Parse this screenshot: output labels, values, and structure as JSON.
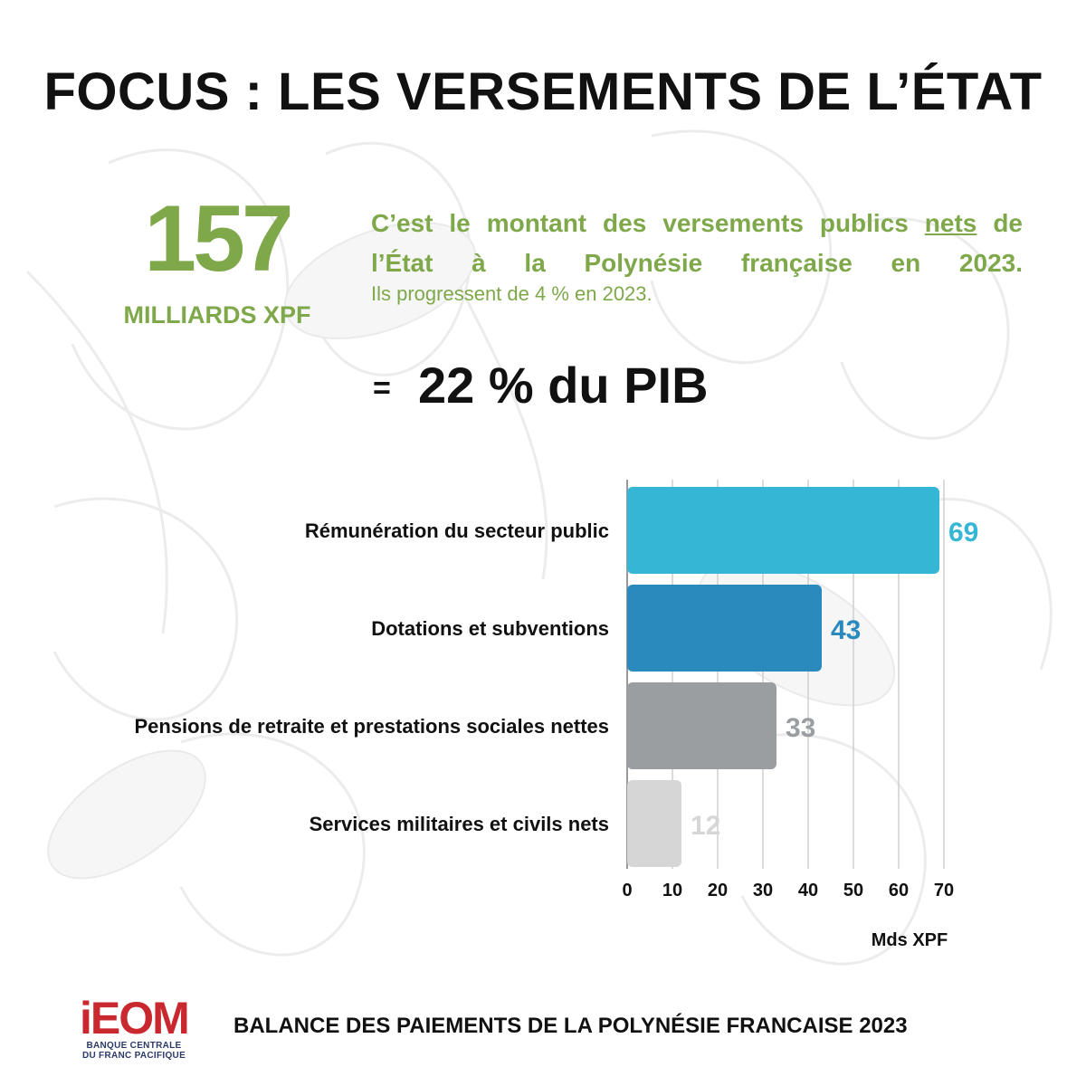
{
  "header": {
    "title": "FOCUS : LES VERSEMENTS DE L’ÉTAT"
  },
  "highlight": {
    "number": "157",
    "unit": "MILLIARDS XPF",
    "desc_part1": "C’est le montant des versements publics ",
    "desc_underlined": "nets",
    "desc_part2": " de l’État à la Polynésie française en 2023.",
    "desc_sub": "Ils progressent de 4 % en 2023.",
    "pib_equals": "=",
    "pib_text": "22 % du PIB"
  },
  "colors": {
    "green": "#7ea84a",
    "bar1": "#35b6d5",
    "bar2": "#2a89bd",
    "bar3": "#9a9ea1",
    "bar4": "#d6d6d6"
  },
  "chart_data": {
    "type": "bar",
    "orientation": "horizontal",
    "categories": [
      "Rémunération du secteur public",
      "Dotations et subventions",
      "Pensions de retraite et prestations sociales nettes",
      "Services militaires et civils nets"
    ],
    "values": [
      69,
      43,
      33,
      12
    ],
    "value_labels": [
      "69",
      "43",
      "33",
      "12"
    ],
    "bar_colors": [
      "#35b6d5",
      "#2a89bd",
      "#9a9ea1",
      "#d6d6d6"
    ],
    "label_colors": [
      "#35b6d5",
      "#2a89bd",
      "#9a9ea1",
      "#d6d6d6"
    ],
    "xticks": [
      0,
      10,
      20,
      30,
      40,
      50,
      60,
      70
    ],
    "xlim": [
      0,
      70
    ],
    "xlabel": "Mds XPF",
    "grid": true
  },
  "footer": {
    "title": "BALANCE DES PAIEMENTS DE LA  POLYNÉSIE FRANCAISE 2023",
    "logo_text": "iEOM",
    "logo_sub_1": "BANQUE CENTRALE",
    "logo_sub_2": "DU FRANC PACIFIQUE"
  }
}
